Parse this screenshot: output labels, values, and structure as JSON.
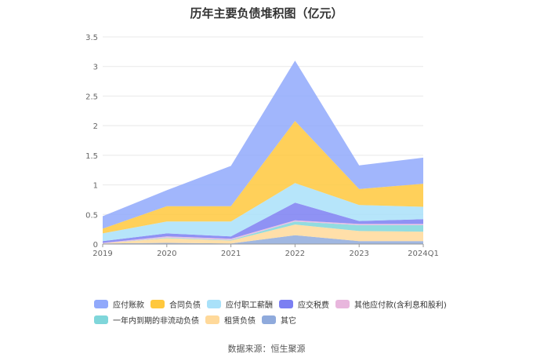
{
  "title": "历年主要负债堆积图（亿元）",
  "source": "数据来源：恒生聚源",
  "chart_data": {
    "type": "area",
    "stacked": true,
    "title": "历年主要负债堆积图（亿元）",
    "xlabel": "",
    "ylabel": "",
    "categories": [
      "2019",
      "2020",
      "2021",
      "2022",
      "2023",
      "2024Q1"
    ],
    "ylim": [
      0,
      3.5
    ],
    "yticks": [
      "0",
      "0.5",
      "1",
      "1.5",
      "2",
      "2.5",
      "3",
      "3.5"
    ],
    "grid": true,
    "legend_position": "bottom",
    "series": [
      {
        "name": "其它",
        "color": "#8faadc",
        "values": [
          0.01,
          0.02,
          0.01,
          0.15,
          0.05,
          0.05
        ]
      },
      {
        "name": "租赁负债",
        "color": "#ffd99a",
        "values": [
          0.0,
          0.08,
          0.05,
          0.18,
          0.17,
          0.16
        ]
      },
      {
        "name": "一年内到期的非流动负债",
        "color": "#7fd6da",
        "values": [
          0.0,
          0.01,
          0.01,
          0.05,
          0.1,
          0.11
        ]
      },
      {
        "name": "其他应付款(含利息和股利)",
        "color": "#e8b6dd",
        "values": [
          0.01,
          0.02,
          0.02,
          0.02,
          0.02,
          0.02
        ]
      },
      {
        "name": "应交税费",
        "color": "#7b7ff2",
        "values": [
          0.03,
          0.05,
          0.04,
          0.3,
          0.05,
          0.08
        ]
      },
      {
        "name": "应付职工薪酬",
        "color": "#a9e1f9",
        "values": [
          0.13,
          0.2,
          0.25,
          0.33,
          0.27,
          0.21
        ]
      },
      {
        "name": "合同负债",
        "color": "#ffc83d",
        "values": [
          0.08,
          0.26,
          0.26,
          1.05,
          0.27,
          0.39
        ]
      },
      {
        "name": "应付账款",
        "color": "#91a9fb",
        "values": [
          0.21,
          0.27,
          0.68,
          1.02,
          0.4,
          0.44
        ]
      }
    ]
  },
  "legend": {
    "row1": [
      {
        "label": "应付账款",
        "color": "#91a9fb"
      },
      {
        "label": "合同负债",
        "color": "#ffc83d"
      },
      {
        "label": "应付职工薪酬",
        "color": "#a9e1f9"
      },
      {
        "label": "应交税费",
        "color": "#7b7ff2"
      },
      {
        "label": "其他应付款(含利息和股利)",
        "color": "#e8b6dd"
      }
    ],
    "row2": [
      {
        "label": "一年内到期的非流动负债",
        "color": "#7fd6da"
      },
      {
        "label": "租赁负债",
        "color": "#ffd99a"
      },
      {
        "label": "其它",
        "color": "#8faadc"
      }
    ]
  }
}
